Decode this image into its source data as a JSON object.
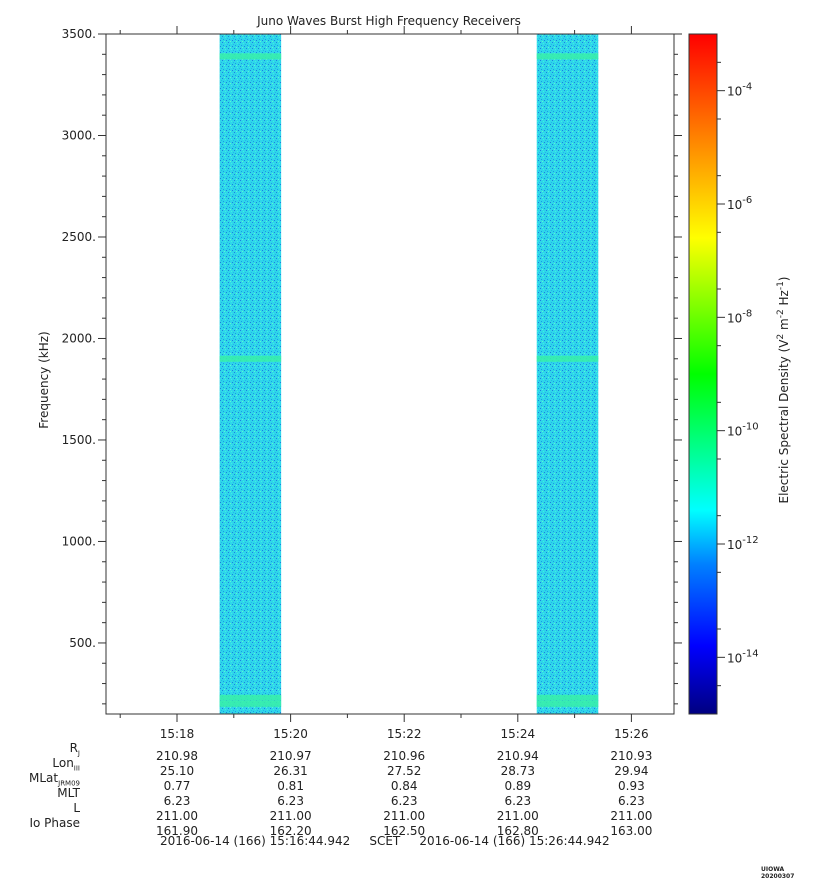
{
  "chart_data": {
    "type": "heatmap",
    "title": "Juno Waves Burst High Frequency Receivers",
    "ylabel": "Frequency (kHz)",
    "ylim": [
      150,
      3500
    ],
    "y_ticks": [
      500,
      1000,
      1500,
      2000,
      2500,
      3000,
      3500
    ],
    "y_tick_labels": [
      "500.",
      "1000.",
      "1500.",
      "2000.",
      "2500.",
      "3000.",
      "3500."
    ],
    "xlim_minutes_since_1500": [
      16.75,
      26.75
    ],
    "x_tick_labels": [
      "15:18",
      "15:20",
      "15:22",
      "15:24",
      "15:26"
    ],
    "x_ticks_minutes_since_1500": [
      18,
      20,
      22,
      24,
      26
    ],
    "data_blocks": [
      {
        "start": "15:18:45",
        "end": "15:19:50",
        "typical_level": "1e-12"
      },
      {
        "start": "15:24:20",
        "end": "15:25:25",
        "typical_level": "1e-12"
      }
    ],
    "enhanced_bands_kHz": [
      200,
      230,
      1900,
      3390
    ],
    "colorbar": {
      "label": "Electric Spectral Density (V² m⁻² Hz⁻¹)",
      "label_main": "Electric Spectral Density (V",
      "scale": "log",
      "range_exp": [
        -15,
        -3
      ],
      "ticks_exp": [
        -4,
        -6,
        -8,
        -10,
        -12,
        -14
      ],
      "tick_base": "10"
    },
    "colors": [
      "#000080",
      "#0000ff",
      "#0080ff",
      "#00ffff",
      "#00ff80",
      "#00ff00",
      "#80ff00",
      "#ffff00",
      "#ff8000",
      "#ff0000"
    ]
  },
  "ephemeris": {
    "labels": [
      "R",
      "Lon",
      "MLat",
      "MLT",
      "L",
      "Io Phase"
    ],
    "label_subscripts": [
      "J",
      "III",
      "JRM09",
      "",
      "",
      ""
    ],
    "columns": [
      [
        "210.98",
        "25.10",
        "0.77",
        "6.23",
        "211.00",
        "161.90"
      ],
      [
        "210.97",
        "26.31",
        "0.81",
        "6.23",
        "211.00",
        "162.20"
      ],
      [
        "210.96",
        "27.52",
        "0.84",
        "6.23",
        "211.00",
        "162.50"
      ],
      [
        "210.94",
        "28.73",
        "0.89",
        "6.23",
        "211.00",
        "162.80"
      ],
      [
        "210.93",
        "29.94",
        "0.93",
        "6.23",
        "211.00",
        "163.00"
      ]
    ]
  },
  "footer": {
    "start": "2016-06-14 (166) 15:16:44.942",
    "scet": "SCET",
    "end": "2016-06-14 (166) 15:26:44.942"
  },
  "stamp": "UIOWA 20200307"
}
